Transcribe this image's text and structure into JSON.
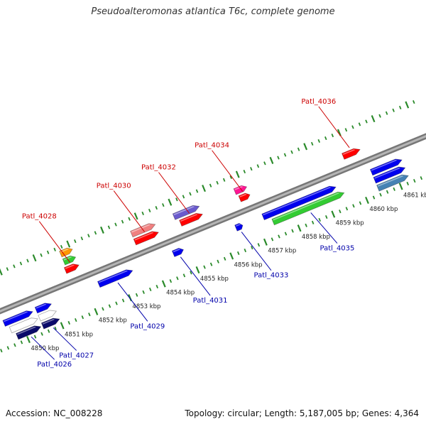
{
  "title": "Pseudoalteromonas atlantica T6c, complete genome",
  "footer": {
    "accession": "Accession: NC_008228",
    "summary": "Topology: circular; Length: 5,187,005 bp; Genes: 4,364"
  },
  "colors": {
    "backbone": "#8a8a8a",
    "tick": "#2a8a2a",
    "label_top": "#cc0000",
    "label_bottom": "#0000aa"
  },
  "map": {
    "kbp_start": 4850,
    "kbp_end": 4861,
    "kbp_labels": [
      "4850 kbp",
      "4851 kbp",
      "4852 kbp",
      "4853 kbp",
      "4854 kbp",
      "4855 kbp",
      "4856 kbp",
      "4857 kbp",
      "4858 kbp",
      "4859 kbp",
      "4860 kbp",
      "4861 kbp"
    ]
  },
  "genes_top": [
    {
      "label": "Patl_4028",
      "start": 4851.65,
      "end": 4852.05,
      "row": 0,
      "color": "#ff0000"
    },
    {
      "label": "",
      "start": 4851.7,
      "end": 4852.05,
      "row": 1,
      "color": "#33cc33"
    },
    {
      "label": "",
      "start": 4851.7,
      "end": 4852.05,
      "row": 2,
      "color": "#ff9900"
    },
    {
      "label": "Patl_4030",
      "start": 4853.7,
      "end": 4854.4,
      "row": 0,
      "color": "#ff0000"
    },
    {
      "label": "",
      "start": 4853.7,
      "end": 4854.4,
      "row": 1,
      "color": "#f08080"
    },
    {
      "label": "Patl_4032",
      "start": 4855.05,
      "end": 4855.7,
      "row": 0,
      "color": "#ff0000"
    },
    {
      "label": "",
      "start": 4854.95,
      "end": 4855.7,
      "row": 1,
      "color": "#6a5acd"
    },
    {
      "label": "Patl_4034",
      "start": 4856.8,
      "end": 4857.1,
      "row": 0,
      "color": "#ff0000"
    },
    {
      "label": "",
      "start": 4856.75,
      "end": 4857.1,
      "row": 1,
      "color": "#ff1493"
    },
    {
      "label": "Patl_4036",
      "start": 4859.85,
      "end": 4860.35,
      "row": 0,
      "color": "#ff0000"
    }
  ],
  "genes_bottom": [
    {
      "label": "Patl_4026",
      "start": 4849.75,
      "end": 4850.45,
      "row": 2,
      "color": "#0a0a6a"
    },
    {
      "label": "",
      "start": 4849.65,
      "end": 4850.45,
      "row": 1,
      "color": "#ffffff"
    },
    {
      "label": "",
      "start": 4849.55,
      "end": 4850.4,
      "row": 0,
      "color": "#0000ee"
    },
    {
      "label": "Patl_4027",
      "start": 4850.5,
      "end": 4851.0,
      "row": 2,
      "color": "#0a0a6a"
    },
    {
      "label": "",
      "start": 4850.5,
      "end": 4851.0,
      "row": 1,
      "color": "#ffffff"
    },
    {
      "label": "",
      "start": 4850.5,
      "end": 4850.95,
      "row": 0,
      "color": "#0000ee"
    },
    {
      "label": "Patl_4029",
      "start": 4852.35,
      "end": 4853.35,
      "row": 0,
      "color": "#0000ee"
    },
    {
      "label": "Patl_4031",
      "start": 4854.55,
      "end": 4854.85,
      "row": 0,
      "color": "#0000ee"
    },
    {
      "label": "Patl_4033",
      "start": 4856.4,
      "end": 4856.6,
      "row": 0,
      "color": "#0000ee"
    },
    {
      "label": "",
      "start": 4857.2,
      "end": 4859.35,
      "row": 0,
      "color": "#0000ee"
    },
    {
      "label": "Patl_4035",
      "start": 4857.4,
      "end": 4859.5,
      "row": 1,
      "color": "#33cc33"
    },
    {
      "label": "",
      "start": 4860.4,
      "end": 4861.3,
      "row": 0,
      "color": "#0000ee"
    },
    {
      "label": "",
      "start": 4860.4,
      "end": 4861.3,
      "row": 1,
      "color": "#0000ee"
    },
    {
      "label": "",
      "start": 4860.4,
      "end": 4861.3,
      "row": 2,
      "color": "#4682b4"
    }
  ]
}
